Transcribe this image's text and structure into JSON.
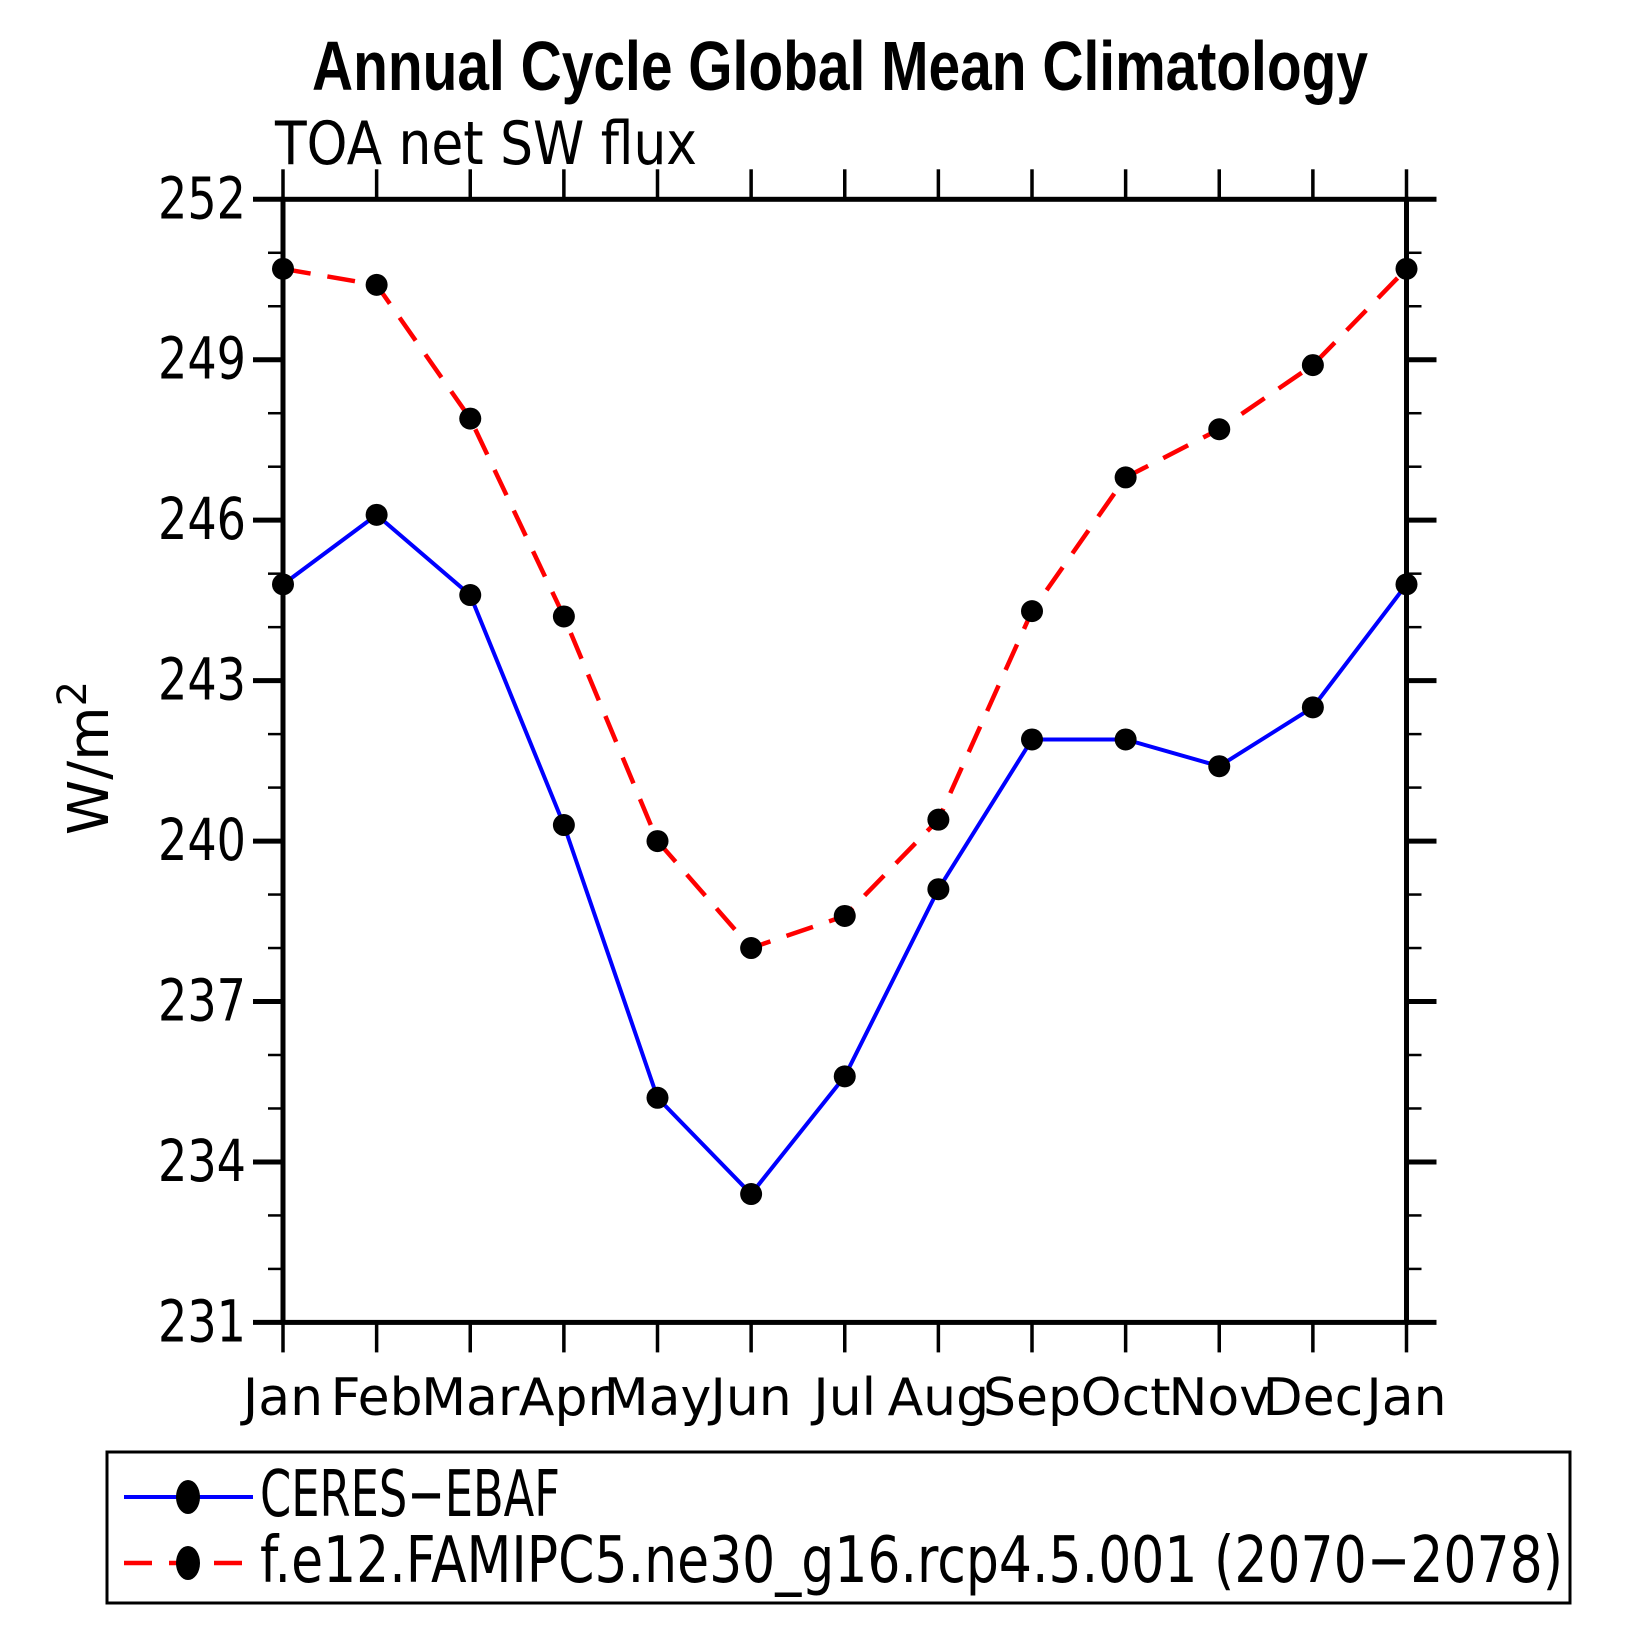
{
  "page": {
    "background": "#ffffff",
    "axis_color": "#000000",
    "text_color": "#000000"
  },
  "chart_data": {
    "type": "line",
    "title": "Annual Cycle Global Mean Climatology",
    "subtitle": "TOA net SW flux",
    "ylabel": {
      "base": "W/m",
      "sup": "2"
    },
    "categories": [
      "Jan",
      "Feb",
      "Mar",
      "Apr",
      "May",
      "Jun",
      "Jul",
      "Aug",
      "Sep",
      "Oct",
      "Nov",
      "Dec",
      "Jan"
    ],
    "ylim": [
      231,
      252
    ],
    "ytick_major": [
      231,
      234,
      237,
      240,
      243,
      246,
      249,
      252
    ],
    "ytick_minor_step": 1,
    "grid": false,
    "legend_position": "bottom-left-box",
    "marker": {
      "shape": "circle",
      "color": "#000000",
      "radius": 11
    },
    "series": [
      {
        "name": "CERES−EBAF",
        "color": "#0000ff",
        "line_style": "solid",
        "values": [
          244.8,
          246.1,
          244.6,
          240.3,
          235.2,
          233.4,
          235.6,
          239.1,
          241.9,
          241.9,
          241.4,
          242.5,
          244.8
        ]
      },
      {
        "name": "f.e12.FAMIPC5.ne30_g16.rcp4.5.001 (2070−2078)",
        "color": "#ff0000",
        "line_style": "dashed",
        "values": [
          250.7,
          250.4,
          247.9,
          244.2,
          240.0,
          238.0,
          238.6,
          240.4,
          244.3,
          246.8,
          247.7,
          248.9,
          250.7
        ]
      }
    ]
  }
}
